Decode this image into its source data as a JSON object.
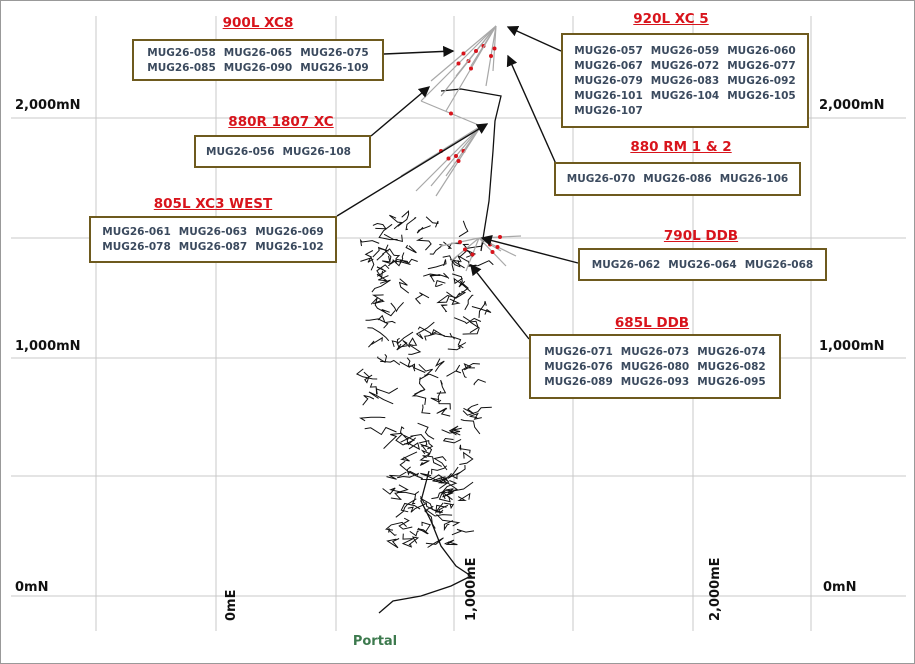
{
  "grid_labels": {
    "left_northings": [
      "2,000mN",
      "1,000mN",
      "0mN"
    ],
    "right_northings": [
      "2,000mN",
      "1,000mN",
      "0mN"
    ],
    "eastings": [
      "0mE",
      "1,000mE",
      "2,000mE"
    ]
  },
  "callouts": [
    {
      "title": "900L XC8",
      "holes": [
        "MUG26-058",
        "MUG26-065",
        "MUG26-075",
        "MUG26-085",
        "MUG26-090",
        "MUG26-109"
      ]
    },
    {
      "title": "920L XC 5",
      "holes": [
        "MUG26-057",
        "MUG26-059",
        "MUG26-060",
        "MUG26-067",
        "MUG26-072",
        "MUG26-077",
        "MUG26-079",
        "MUG26-083",
        "MUG26-092",
        "MUG26-101",
        "MUG26-104",
        "MUG26-105",
        "MUG26-107"
      ]
    },
    {
      "title": "880R 1807 XC",
      "holes": [
        "MUG26-056",
        "MUG26-108"
      ]
    },
    {
      "title": "880 RM 1 & 2",
      "holes": [
        "MUG26-070",
        "MUG26-086",
        "MUG26-106"
      ]
    },
    {
      "title": "805L XC3 WEST",
      "holes": [
        "MUG26-061",
        "MUG26-063",
        "MUG26-069",
        "MUG26-078",
        "MUG26-087",
        "MUG26-102"
      ]
    },
    {
      "title": "790L DDB",
      "holes": [
        "MUG26-062",
        "MUG26-064",
        "MUG26-068"
      ]
    },
    {
      "title": "685L DDB",
      "holes": [
        "MUG26-071",
        "MUG26-073",
        "MUG26-074",
        "MUG26-076",
        "MUG26-080",
        "MUG26-082",
        "MUG26-089",
        "MUG26-093",
        "MUG26-095"
      ]
    }
  ],
  "portal": "Portal"
}
